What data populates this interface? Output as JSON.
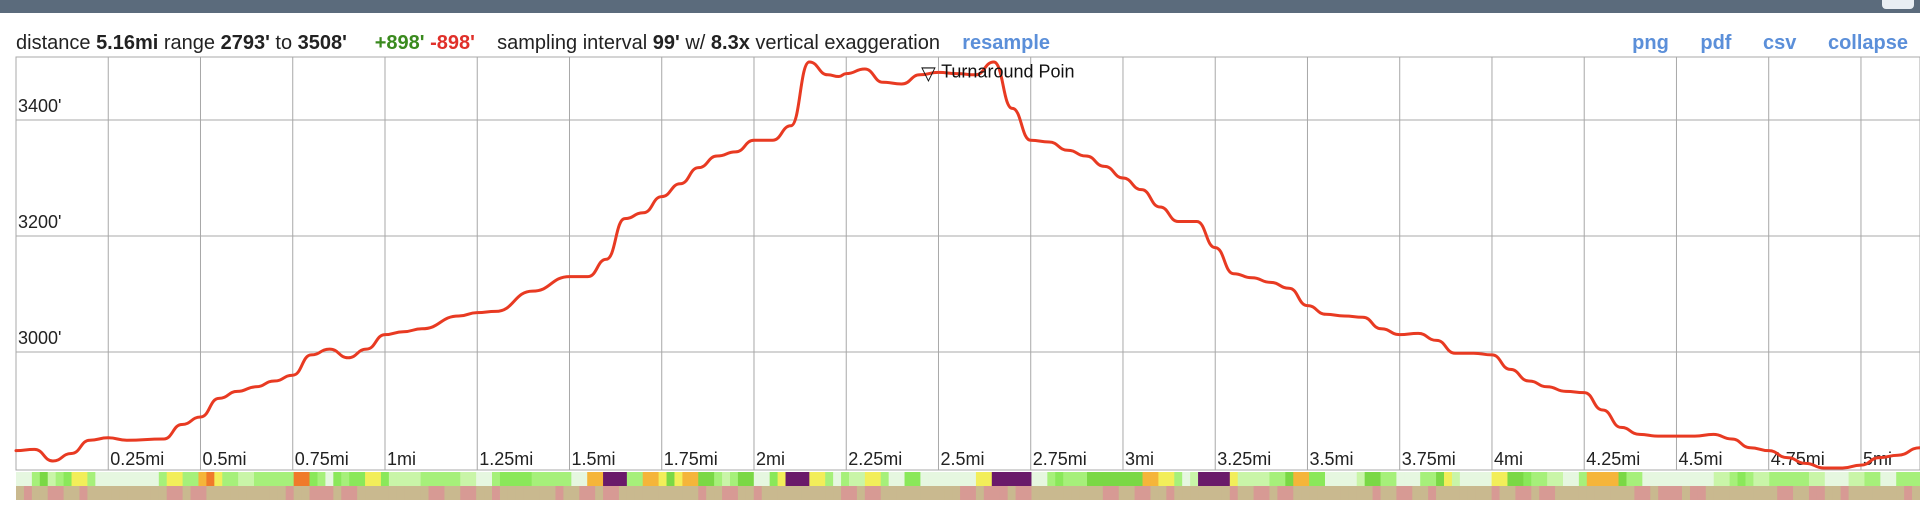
{
  "stats": {
    "distance_label": "distance",
    "distance": "5.16mi",
    "range_label": "range",
    "range_min": "2793'",
    "to_label": "to",
    "range_max": "3508'",
    "gain": "+898'",
    "loss": "-898'",
    "interval_label": "sampling interval",
    "interval": "99'",
    "w_label": "w/",
    "exaggeration": "8.3x",
    "exaggeration_label": "vertical exaggeration",
    "resample": "resample"
  },
  "actions": {
    "png": "png",
    "pdf": "pdf",
    "csv": "csv",
    "collapse": "collapse"
  },
  "colors": {
    "line": "#e83a22",
    "grid": "#a8a8a8",
    "link": "#5b8fd9"
  },
  "chart_data": {
    "type": "line",
    "xlabel": "",
    "ylabel": "",
    "xlim": [
      0,
      5.16
    ],
    "ylim": [
      2793,
      3508
    ],
    "x_ticks": [
      0.25,
      0.5,
      0.75,
      1,
      1.25,
      1.5,
      1.75,
      2,
      2.25,
      2.5,
      2.75,
      3,
      3.25,
      3.5,
      3.75,
      4,
      4.25,
      4.5,
      4.75,
      5
    ],
    "x_tick_labels": [
      "0.25mi",
      "0.5mi",
      "0.75mi",
      "1mi",
      "1.25mi",
      "1.5mi",
      "1.75mi",
      "2mi",
      "2.25mi",
      "2.5mi",
      "2.75mi",
      "3mi",
      "3.25mi",
      "3.5mi",
      "3.75mi",
      "4mi",
      "4.25mi",
      "4.5mi",
      "4.75mi",
      "5mi"
    ],
    "y_ticks": [
      3000,
      3200,
      3400
    ],
    "y_tick_labels": [
      "3000'",
      "3200'",
      "3400'"
    ],
    "grid": true,
    "annotations": [
      {
        "x": 2.48,
        "y": 3470,
        "text": "Turnaround Poin",
        "marker": "▽"
      }
    ],
    "series": [
      {
        "x": [
          0,
          0.05,
          0.1,
          0.15,
          0.2,
          0.25,
          0.3,
          0.4,
          0.45,
          0.5,
          0.55,
          0.6,
          0.65,
          0.7,
          0.75,
          0.8,
          0.85,
          0.9,
          0.95,
          1.0,
          1.05,
          1.1,
          1.2,
          1.25,
          1.3,
          1.4,
          1.5,
          1.55,
          1.6,
          1.65,
          1.7,
          1.75,
          1.8,
          1.85,
          1.9,
          1.95,
          2.0,
          2.05,
          2.1,
          2.15,
          2.2,
          2.23,
          2.25,
          2.3,
          2.35,
          2.4,
          2.45,
          2.5,
          2.55,
          2.6,
          2.65,
          2.7,
          2.75,
          2.8,
          2.85,
          2.9,
          2.95,
          3.0,
          3.05,
          3.1,
          3.15,
          3.2,
          3.25,
          3.3,
          3.35,
          3.4,
          3.45,
          3.5,
          3.55,
          3.6,
          3.65,
          3.7,
          3.75,
          3.8,
          3.85,
          3.9,
          3.95,
          4.0,
          4.05,
          4.1,
          4.15,
          4.2,
          4.25,
          4.3,
          4.35,
          4.4,
          4.45,
          4.5,
          4.55,
          4.6,
          4.65,
          4.7,
          4.75,
          4.8,
          4.85,
          4.9,
          4.95,
          5.0,
          5.05,
          5.1,
          5.16
        ],
        "y": [
          2830,
          2832,
          2812,
          2825,
          2848,
          2852,
          2848,
          2850,
          2875,
          2888,
          2920,
          2932,
          2940,
          2950,
          2960,
          2995,
          3005,
          2990,
          3005,
          3030,
          3035,
          3040,
          3062,
          3068,
          3070,
          3105,
          3130,
          3130,
          3160,
          3230,
          3240,
          3268,
          3290,
          3318,
          3338,
          3345,
          3365,
          3365,
          3390,
          3500,
          3478,
          3475,
          3480,
          3488,
          3465,
          3462,
          3478,
          3482,
          3480,
          3478,
          3500,
          3420,
          3365,
          3362,
          3348,
          3338,
          3320,
          3300,
          3280,
          3250,
          3225,
          3225,
          3180,
          3135,
          3128,
          3120,
          3110,
          3080,
          3065,
          3062,
          3060,
          3040,
          3030,
          3032,
          3020,
          2998,
          2998,
          2995,
          2970,
          2950,
          2940,
          2932,
          2930,
          2900,
          2870,
          2858,
          2855,
          2855,
          2855,
          2858,
          2850,
          2835,
          2830,
          2818,
          2808,
          2800,
          2800,
          2805,
          2818,
          2822,
          2835
        ]
      }
    ]
  }
}
